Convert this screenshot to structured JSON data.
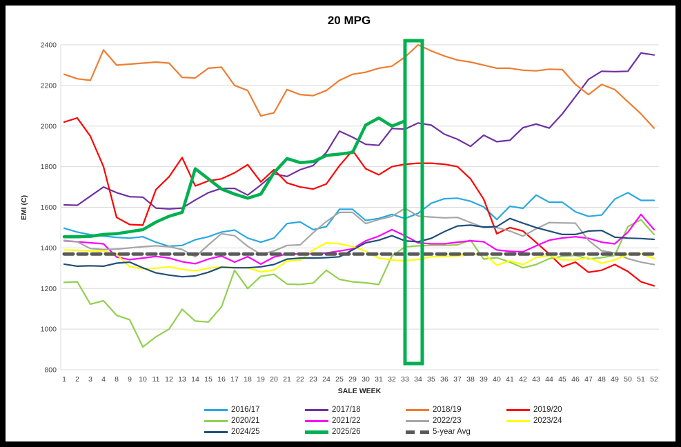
{
  "title": "20 MPG",
  "chart_data": {
    "type": "line",
    "title": "20 MPG",
    "xlabel": "SALE WEEK",
    "ylabel": "EMI (C)",
    "ylim": [
      800,
      2400
    ],
    "y_ticks": [
      800,
      1000,
      1200,
      1400,
      1600,
      1800,
      2000,
      2200,
      2400
    ],
    "grid": "horizontal",
    "legend_position": "bottom",
    "gridline_color": "#D9D9D9",
    "categories": [
      1,
      2,
      3,
      4,
      8,
      9,
      10,
      11,
      12,
      13,
      14,
      15,
      16,
      17,
      18,
      19,
      20,
      21,
      22,
      23,
      24,
      25,
      29,
      30,
      31,
      32,
      33,
      34,
      35,
      36,
      37,
      38,
      39,
      40,
      41,
      42,
      43,
      44,
      45,
      46,
      47,
      48,
      49,
      50,
      51,
      52
    ],
    "highlight_box": {
      "from_week": 33,
      "to_week": 34,
      "color": "#00B050"
    },
    "series": [
      {
        "name": "2016/17",
        "color": "#29A8E0",
        "width": 2.2,
        "values": [
          1497,
          1478,
          1465,
          1458,
          1452,
          1448,
          1455,
          1428,
          1408,
          1412,
          1440,
          1455,
          1478,
          1488,
          1448,
          1428,
          1448,
          1520,
          1528,
          1490,
          1505,
          1590,
          1590,
          1535,
          1545,
          1565,
          1545,
          1570,
          1620,
          1642,
          1645,
          1630,
          1602,
          1540,
          1605,
          1595,
          1660,
          1625,
          1625,
          1578,
          1555,
          1562,
          1640,
          1672,
          1634,
          1634
        ]
      },
      {
        "name": "2017/18",
        "color": "#7030A0",
        "width": 2.2,
        "values": [
          1612,
          1610,
          1655,
          1700,
          1672,
          1652,
          1650,
          1596,
          1592,
          1596,
          1636,
          1672,
          1693,
          1693,
          1660,
          1710,
          1765,
          1752,
          1785,
          1806,
          1870,
          1975,
          1945,
          1910,
          1905,
          1988,
          1985,
          2015,
          2005,
          1960,
          1935,
          1900,
          1955,
          1923,
          1930,
          1992,
          2010,
          1990,
          2060,
          2145,
          2230,
          2270,
          2268,
          2270,
          2360,
          2350
        ]
      },
      {
        "name": "2018/19",
        "color": "#ED7D31",
        "width": 2.2,
        "values": [
          2255,
          2233,
          2225,
          2375,
          2300,
          2305,
          2310,
          2315,
          2310,
          2240,
          2237,
          2285,
          2290,
          2200,
          2175,
          2050,
          2065,
          2180,
          2155,
          2150,
          2175,
          2225,
          2255,
          2265,
          2285,
          2295,
          2340,
          2400,
          2370,
          2345,
          2325,
          2315,
          2300,
          2285,
          2285,
          2275,
          2272,
          2280,
          2278,
          2205,
          2155,
          2205,
          2180,
          2120,
          2060,
          1990
        ]
      },
      {
        "name": "2019/20",
        "color": "#FF0000",
        "width": 2.2,
        "values": [
          2020,
          2040,
          1950,
          1800,
          1550,
          1515,
          1512,
          1687,
          1750,
          1845,
          1705,
          1730,
          1740,
          1770,
          1810,
          1725,
          1785,
          1720,
          1700,
          1690,
          1715,
          1805,
          1880,
          1790,
          1760,
          1800,
          1812,
          1817,
          1817,
          1812,
          1800,
          1740,
          1640,
          1470,
          1500,
          1483,
          1427,
          1370,
          1307,
          1330,
          1280,
          1290,
          1318,
          1284,
          1233,
          1213
        ]
      },
      {
        "name": "2020/21",
        "color": "#92D050",
        "width": 2.2,
        "values": [
          1230,
          1233,
          1123,
          1140,
          1068,
          1046,
          912,
          962,
          1000,
          1098,
          1040,
          1035,
          1110,
          1290,
          1200,
          1260,
          1270,
          1222,
          1220,
          1227,
          1290,
          1245,
          1233,
          1228,
          1220,
          1360,
          1405,
          1410,
          1412,
          1412,
          1415,
          1438,
          1345,
          1352,
          1330,
          1302,
          1318,
          1347,
          1358,
          1363,
          1346,
          1352,
          1363,
          1505,
          1539,
          1466
        ]
      },
      {
        "name": "2021/22",
        "color": "#FF00FF",
        "width": 2.2,
        "values": [
          1435,
          1430,
          1425,
          1420,
          1355,
          1342,
          1350,
          1358,
          1350,
          1332,
          1322,
          1345,
          1360,
          1330,
          1357,
          1320,
          1355,
          1370,
          1370,
          1372,
          1375,
          1385,
          1395,
          1435,
          1458,
          1490,
          1460,
          1425,
          1420,
          1420,
          1428,
          1435,
          1430,
          1390,
          1383,
          1381,
          1410,
          1438,
          1449,
          1455,
          1447,
          1428,
          1420,
          1477,
          1565,
          1490
        ]
      },
      {
        "name": "2022/23",
        "color": "#A6A6A6",
        "width": 2.2,
        "values": [
          1437,
          1430,
          1397,
          1392,
          1394,
          1400,
          1406,
          1410,
          1406,
          1392,
          1356,
          1415,
          1470,
          1460,
          1408,
          1368,
          1385,
          1412,
          1415,
          1475,
          1530,
          1575,
          1575,
          1520,
          1540,
          1555,
          1595,
          1557,
          1552,
          1548,
          1550,
          1525,
          1500,
          1500,
          1483,
          1458,
          1494,
          1525,
          1523,
          1522,
          1437,
          1386,
          1375,
          1347,
          1330,
          1318
        ]
      },
      {
        "name": "2023/24",
        "color": "#FFFF00",
        "width": 2.2,
        "values": [
          1390,
          1388,
          1385,
          1385,
          1368,
          1307,
          1298,
          1300,
          1307,
          1295,
          1287,
          1300,
          1307,
          1303,
          1302,
          1282,
          1291,
          1335,
          1340,
          1390,
          1425,
          1420,
          1407,
          1385,
          1350,
          1340,
          1337,
          1343,
          1356,
          1358,
          1361,
          1366,
          1372,
          1315,
          1336,
          1318,
          1352,
          1363,
          1341,
          1341,
          1352,
          1324,
          1341,
          1368,
          1372,
          1348
        ]
      },
      {
        "name": "2024/25",
        "color": "#1F4E79",
        "width": 2.2,
        "values": [
          1320,
          1310,
          1312,
          1310,
          1325,
          1330,
          1302,
          1277,
          1266,
          1258,
          1262,
          1280,
          1305,
          1302,
          1302,
          1307,
          1318,
          1345,
          1350,
          1350,
          1352,
          1356,
          1390,
          1425,
          1438,
          1460,
          1435,
          1430,
          1447,
          1480,
          1508,
          1512,
          1503,
          1505,
          1545,
          1522,
          1500,
          1483,
          1466,
          1466,
          1483,
          1486,
          1453,
          1448,
          1446,
          1442
        ]
      },
      {
        "name": "2025/26",
        "color": "#00B050",
        "width": 4.5,
        "values": [
          1455,
          1455,
          1457,
          1466,
          1470,
          1480,
          1490,
          1527,
          1556,
          1575,
          1790,
          1740,
          1690,
          1665,
          1645,
          1665,
          1770,
          1840,
          1820,
          1825,
          1855,
          1862,
          1870,
          2005,
          2040,
          2000,
          2025,
          null,
          null,
          null,
          null,
          null,
          null,
          null,
          null,
          null,
          null,
          null,
          null,
          null,
          null,
          null,
          null,
          null,
          null,
          null
        ]
      },
      {
        "name": "5-year Avg",
        "color": "#595959",
        "width": 5,
        "dash": "13 7",
        "values": [
          1370,
          1370,
          1370,
          1370,
          1370,
          1370,
          1370,
          1370,
          1370,
          1370,
          1370,
          1370,
          1370,
          1370,
          1370,
          1370,
          1370,
          1370,
          1370,
          1370,
          1370,
          1370,
          1370,
          1370,
          1370,
          1370,
          1370,
          1370,
          1370,
          1370,
          1370,
          1370,
          1370,
          1370,
          1370,
          1370,
          1370,
          1370,
          1370,
          1370,
          1370,
          1370,
          1370,
          1370,
          1370,
          1370
        ]
      }
    ]
  }
}
